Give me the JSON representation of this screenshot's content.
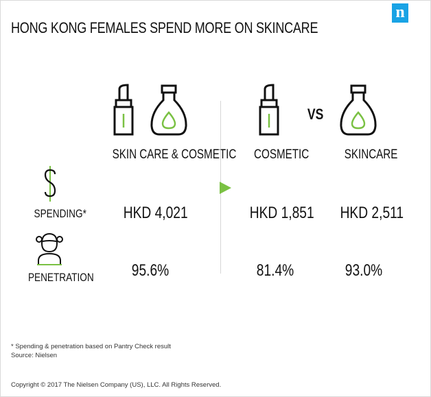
{
  "header": {
    "title": "HONG KONG FEMALES SPEND MORE ON SKINCARE",
    "logo": "n"
  },
  "columns": {
    "combined": "SKIN CARE & COSMETIC",
    "cosmetic": "COSMETIC",
    "vs": "VS",
    "skincare": "SKINCARE"
  },
  "rows": {
    "spending_label": "SPENDING*",
    "penetration_label": "PENETRATION",
    "spending": {
      "combined": "HKD 4,021",
      "cosmetic": "HKD 1,851",
      "skincare": "HKD 2,511"
    },
    "penetration": {
      "combined": "95.6%",
      "cosmetic": "81.4%",
      "skincare": "93.0%"
    }
  },
  "footer": {
    "note": "* Spending & penetration based on Pantry Check result",
    "source": "Source: Nielsen",
    "copyright": "Copyright © 2017 The Nielsen Company (US), LLC. All Rights Reserved."
  },
  "colors": {
    "accent_green": "#7ac143",
    "logo_blue": "#19a3e5",
    "text": "#111111"
  },
  "icons": [
    "lipstick-icon",
    "lotion-bottle-icon",
    "dollar-sign-icon",
    "woman-icon",
    "play-arrow-icon"
  ]
}
